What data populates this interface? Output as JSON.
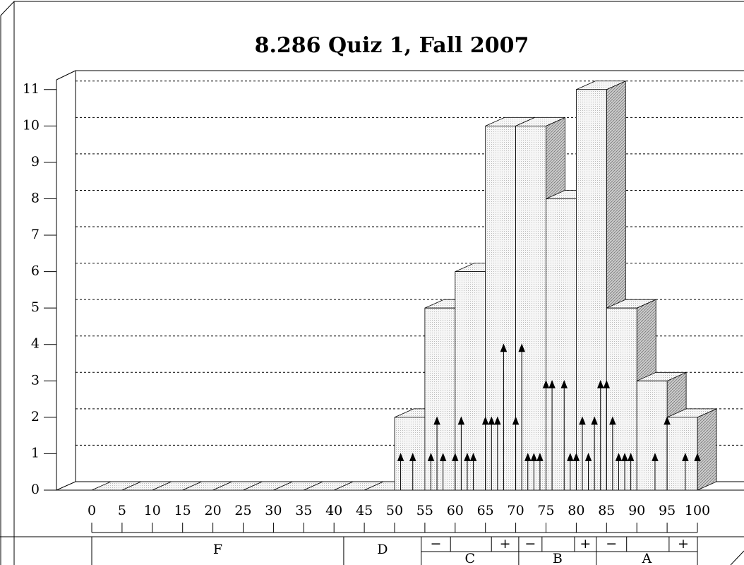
{
  "chart_data": {
    "type": "histogram",
    "title": "8.286 Quiz 1, Fall 2007",
    "bins": [
      0,
      5,
      10,
      15,
      20,
      25,
      30,
      35,
      40,
      45,
      50,
      55,
      60,
      65,
      70,
      75,
      80,
      85,
      90,
      95,
      100
    ],
    "values": [
      0,
      0,
      0,
      0,
      0,
      0,
      0,
      0,
      0,
      0,
      2,
      5,
      6,
      10,
      10,
      8,
      11,
      5,
      3,
      2
    ],
    "xlim": [
      0,
      100
    ],
    "xticks": [
      0,
      5,
      10,
      15,
      20,
      25,
      30,
      35,
      40,
      45,
      50,
      55,
      60,
      65,
      70,
      75,
      80,
      85,
      90,
      95,
      100
    ],
    "ylim": [
      0,
      11.5
    ],
    "yticks": [
      0,
      1,
      2,
      3,
      4,
      5,
      6,
      7,
      8,
      9,
      10,
      11
    ],
    "grid": true,
    "scores": {
      "x": [
        51,
        53,
        56,
        57,
        58,
        60,
        61,
        62,
        63,
        65,
        66,
        67,
        68,
        70,
        71,
        72,
        73,
        74,
        75,
        76,
        78,
        79,
        80,
        81,
        82,
        83,
        84,
        85,
        86,
        87,
        88,
        89,
        93,
        95,
        98,
        100
      ],
      "counts": [
        1,
        1,
        1,
        2,
        1,
        1,
        2,
        1,
        1,
        2,
        2,
        2,
        4,
        2,
        4,
        1,
        1,
        1,
        3,
        3,
        3,
        1,
        1,
        2,
        1,
        2,
        3,
        3,
        2,
        1,
        1,
        1,
        1,
        2,
        1,
        1
      ]
    },
    "grades": [
      {
        "label": "F",
        "range": [
          0,
          41.6
        ]
      },
      {
        "label": "D",
        "range": [
          41.6,
          54.4
        ]
      },
      {
        "label": "C",
        "range": [
          54.4,
          70.5
        ],
        "minus": "−",
        "plus": "+"
      },
      {
        "label": "B",
        "range": [
          70.5,
          83.3
        ],
        "minus": "−",
        "plus": "+"
      },
      {
        "label": "A",
        "range": [
          83.3,
          100
        ],
        "minus": "−",
        "plus": "+"
      }
    ]
  }
}
